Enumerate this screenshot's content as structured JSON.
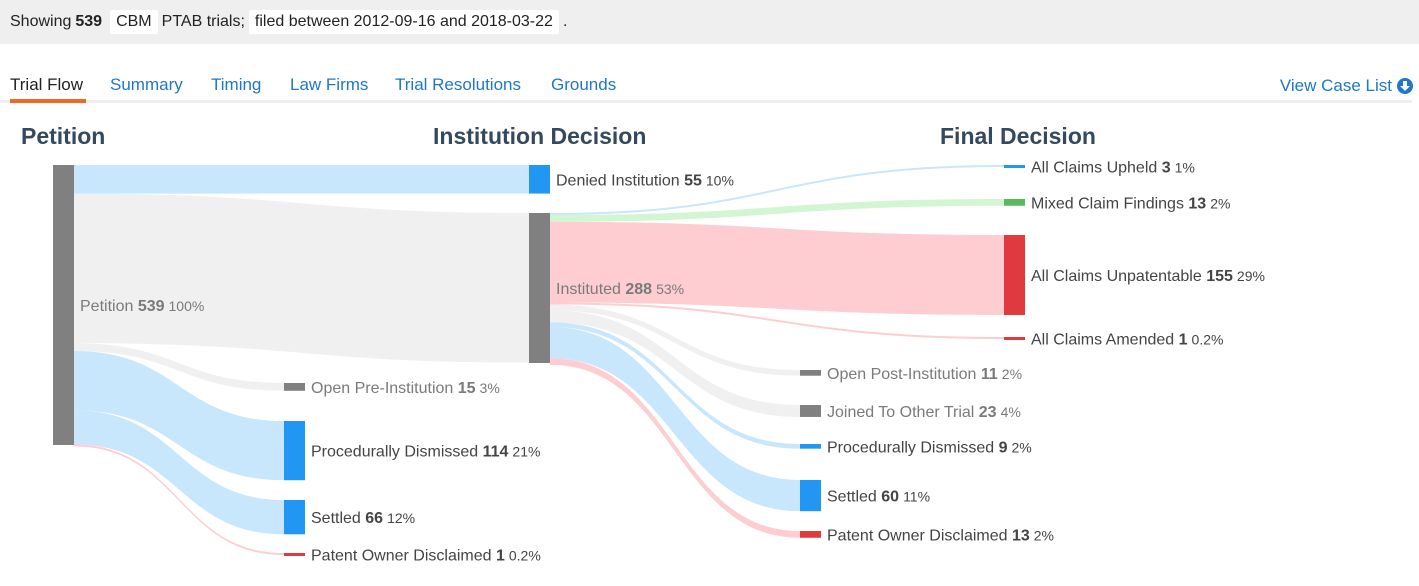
{
  "filter_bar": {
    "prefix": "Showing",
    "count": "539",
    "trial_type": "CBM",
    "middle": "PTAB trials;",
    "date_range": "filed between 2012-09-16 and 2018-03-22",
    "suffix": "."
  },
  "tabs": [
    {
      "label": "Trial Flow",
      "active": true
    },
    {
      "label": "Summary"
    },
    {
      "label": "Timing"
    },
    {
      "label": "Law Firms"
    },
    {
      "label": "Trial Resolutions"
    },
    {
      "label": "Grounds"
    }
  ],
  "view_case_list": {
    "label": "View Case List",
    "icon": "download-circle-icon"
  },
  "colors": {
    "accent": "#ee6a24",
    "link": "#1f77c9",
    "gray_node": "#808080",
    "blue_node": "#2196f3",
    "red_node": "#e0393e",
    "green_node": "#5cb85c",
    "gray_link": "#f0f0f0",
    "blue_link": "#c8e6fc",
    "red_link": "#fecdd2",
    "green_link": "#d2f5d2"
  },
  "chart_data": {
    "type": "sankey",
    "columns": [
      "Petition",
      "Institution Decision",
      "Final Decision"
    ],
    "nodes": [
      {
        "id": "petition",
        "name": "Petition",
        "value": "539",
        "pct": "100%",
        "color": "gray",
        "muted": true
      },
      {
        "id": "denied",
        "name": "Denied Institution",
        "value": "55",
        "pct": "10%",
        "color": "blue"
      },
      {
        "id": "instituted",
        "name": "Instituted",
        "value": "288",
        "pct": "53%",
        "color": "gray",
        "muted": true
      },
      {
        "id": "open_pre",
        "name": "Open Pre-Institution",
        "value": "15",
        "pct": "3%",
        "color": "gray",
        "muted": true
      },
      {
        "id": "proc_dis_pre",
        "name": "Procedurally Dismissed",
        "value": "114",
        "pct": "21%",
        "color": "blue"
      },
      {
        "id": "settled_pre",
        "name": "Settled",
        "value": "66",
        "pct": "12%",
        "color": "blue"
      },
      {
        "id": "pod_pre",
        "name": "Patent Owner Disclaimed",
        "value": "1",
        "pct": "0.2%",
        "color": "red"
      },
      {
        "id": "upheld",
        "name": "All Claims Upheld",
        "value": "3",
        "pct": "1%",
        "color": "blue"
      },
      {
        "id": "mixed",
        "name": "Mixed Claim Findings",
        "value": "13",
        "pct": "2%",
        "color": "green"
      },
      {
        "id": "unpat",
        "name": "All Claims Unpatentable",
        "value": "155",
        "pct": "29%",
        "color": "red"
      },
      {
        "id": "amended",
        "name": "All Claims Amended",
        "value": "1",
        "pct": "0.2%",
        "color": "red"
      },
      {
        "id": "open_post",
        "name": "Open Post-Institution",
        "value": "11",
        "pct": "2%",
        "color": "gray",
        "muted": true
      },
      {
        "id": "joined",
        "name": "Joined To Other Trial",
        "value": "23",
        "pct": "4%",
        "color": "gray",
        "muted": true
      },
      {
        "id": "proc_dis_post",
        "name": "Procedurally Dismissed",
        "value": "9",
        "pct": "2%",
        "color": "blue"
      },
      {
        "id": "settled_post",
        "name": "Settled",
        "value": "60",
        "pct": "11%",
        "color": "blue"
      },
      {
        "id": "pod_post",
        "name": "Patent Owner Disclaimed",
        "value": "13",
        "pct": "2%",
        "color": "red"
      }
    ],
    "links": [
      {
        "source": "petition",
        "target": "denied",
        "value": 55,
        "color": "blue"
      },
      {
        "source": "petition",
        "target": "instituted",
        "value": 288,
        "color": "gray"
      },
      {
        "source": "petition",
        "target": "open_pre",
        "value": 15,
        "color": "gray"
      },
      {
        "source": "petition",
        "target": "proc_dis_pre",
        "value": 114,
        "color": "blue"
      },
      {
        "source": "petition",
        "target": "settled_pre",
        "value": 66,
        "color": "blue"
      },
      {
        "source": "petition",
        "target": "pod_pre",
        "value": 1,
        "color": "red"
      },
      {
        "source": "instituted",
        "target": "upheld",
        "value": 3,
        "color": "blue"
      },
      {
        "source": "instituted",
        "target": "mixed",
        "value": 13,
        "color": "green"
      },
      {
        "source": "instituted",
        "target": "unpat",
        "value": 155,
        "color": "red"
      },
      {
        "source": "instituted",
        "target": "amended",
        "value": 1,
        "color": "red"
      },
      {
        "source": "instituted",
        "target": "open_post",
        "value": 11,
        "color": "gray"
      },
      {
        "source": "instituted",
        "target": "joined",
        "value": 23,
        "color": "gray"
      },
      {
        "source": "instituted",
        "target": "proc_dis_post",
        "value": 9,
        "color": "blue"
      },
      {
        "source": "instituted",
        "target": "settled_post",
        "value": 60,
        "color": "blue"
      },
      {
        "source": "instituted",
        "target": "pod_post",
        "value": 13,
        "color": "red"
      }
    ]
  }
}
